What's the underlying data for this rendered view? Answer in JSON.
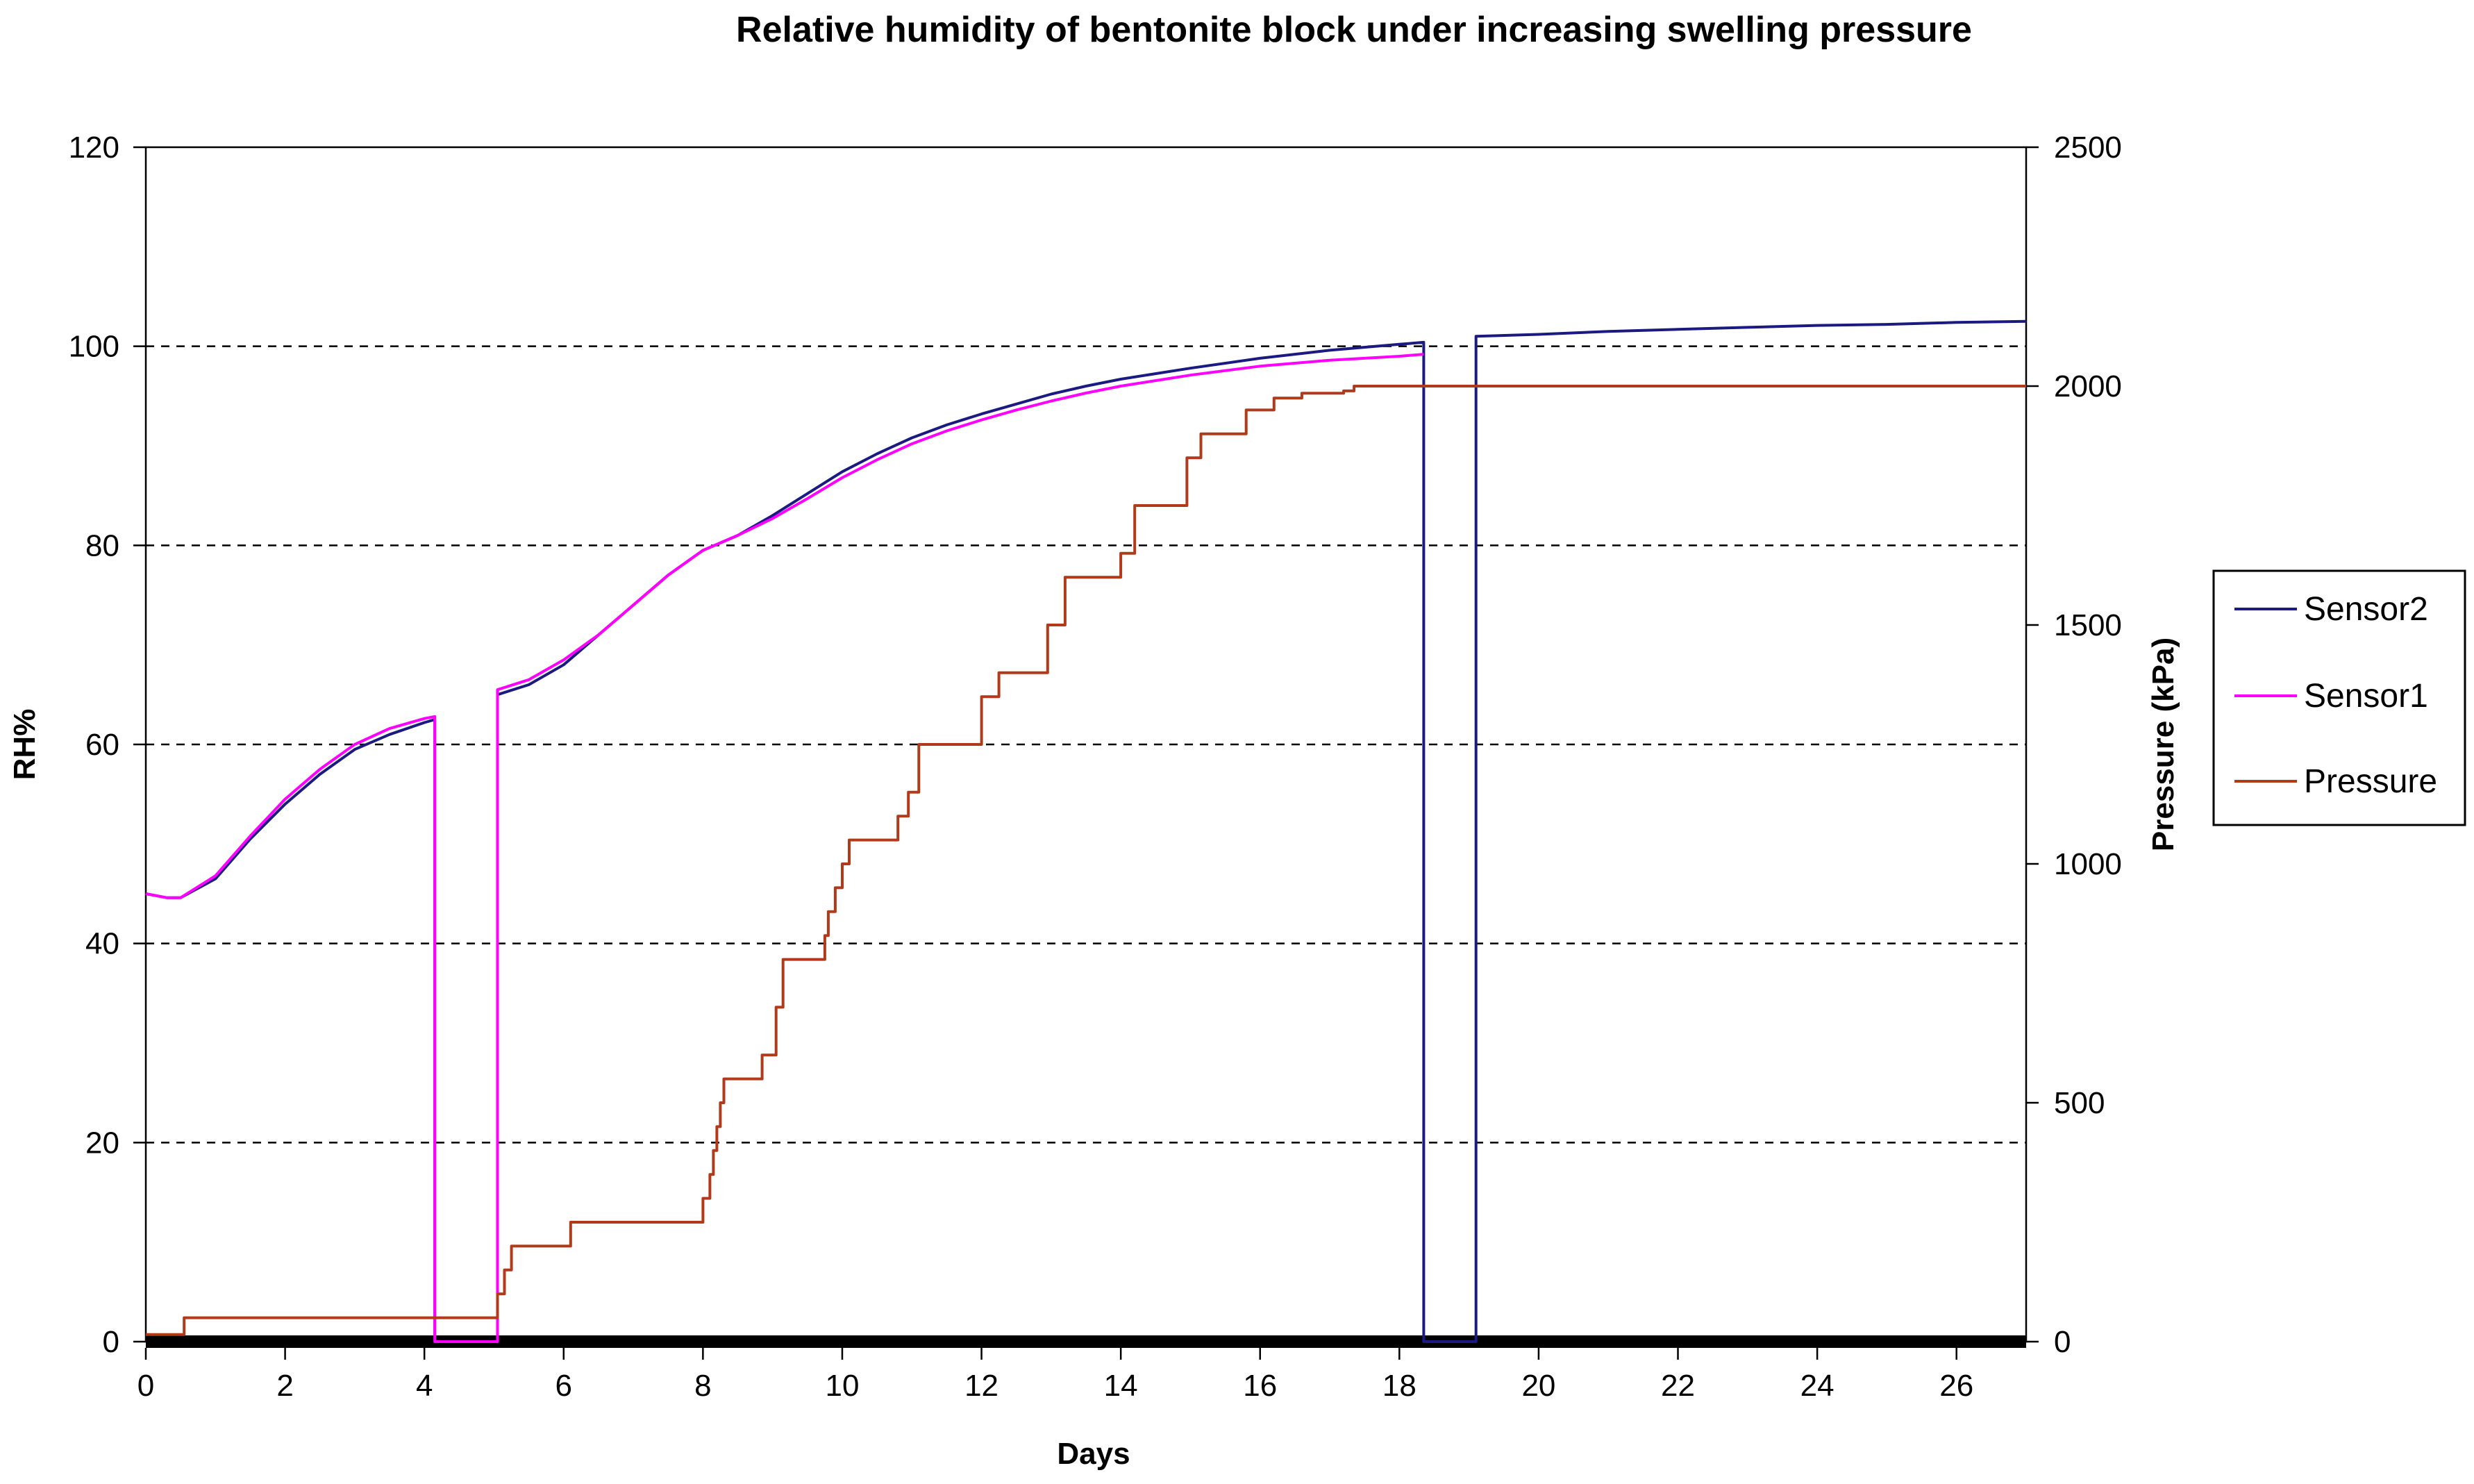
{
  "chart_data": {
    "type": "line",
    "title": "Relative humidity of bentonite block under increasing swelling pressure",
    "xlabel": "Days",
    "ylabel": "RH%",
    "y2label": "Pressure  (kPa)",
    "xlim": [
      0,
      27
    ],
    "ylim": [
      0,
      120
    ],
    "y2lim": [
      0,
      2500
    ],
    "x_ticks": [
      0,
      2,
      4,
      6,
      8,
      10,
      12,
      14,
      16,
      18,
      20,
      22,
      24,
      26
    ],
    "y_ticks": [
      0,
      20,
      40,
      60,
      80,
      100,
      120
    ],
    "y2_ticks": [
      0,
      500,
      1000,
      1500,
      2000,
      2500
    ],
    "y_gridlines": [
      20,
      40,
      60,
      80,
      100
    ],
    "grid_style": "dashed horizontal",
    "legend_position": "right",
    "legend": [
      "Sensor2",
      "Sensor1",
      "Pressure"
    ],
    "series": [
      {
        "name": "Sensor2",
        "axis": "left",
        "color": "#1a1a80",
        "x": [
          0,
          0.3,
          0.5,
          1,
          1.5,
          2,
          2.5,
          3,
          3.5,
          4,
          4.15,
          4.15,
          5.05,
          5.05,
          5.5,
          6,
          6.5,
          7,
          7.5,
          8,
          8.5,
          9,
          9.5,
          10,
          10.5,
          11,
          11.5,
          12,
          12.5,
          13,
          13.5,
          14,
          15,
          16,
          17,
          18,
          18.35,
          18.35,
          19.1,
          19.1,
          20,
          21,
          22,
          23,
          24,
          25,
          26,
          27
        ],
        "y": [
          45,
          44.6,
          44.6,
          46.5,
          50.5,
          54,
          57,
          59.5,
          61,
          62.2,
          62.5,
          0,
          0,
          65,
          66,
          68,
          71,
          74,
          77,
          79.5,
          81,
          83,
          85.2,
          87.4,
          89.2,
          90.8,
          92.1,
          93.2,
          94.2,
          95.2,
          96,
          96.7,
          97.8,
          98.8,
          99.6,
          100.2,
          100.4,
          0,
          0,
          101,
          101.2,
          101.5,
          101.7,
          101.9,
          102.1,
          102.2,
          102.4,
          102.5
        ]
      },
      {
        "name": "Sensor1",
        "axis": "left",
        "color": "#ff00ff",
        "x": [
          0,
          0.3,
          0.5,
          1,
          1.5,
          2,
          2.5,
          3,
          3.5,
          4,
          4.15,
          4.15,
          5.05,
          5.05,
          5.5,
          6,
          6.5,
          7,
          7.5,
          8,
          8.5,
          9,
          9.5,
          10,
          10.5,
          11,
          11.5,
          12,
          12.5,
          13,
          13.5,
          14,
          15,
          16,
          17,
          18,
          18.35
        ],
        "y": [
          45,
          44.6,
          44.6,
          46.8,
          50.8,
          54.5,
          57.5,
          60,
          61.6,
          62.6,
          62.8,
          0,
          0,
          65.5,
          66.5,
          68.5,
          71,
          74,
          77,
          79.5,
          81,
          82.7,
          84.7,
          86.8,
          88.6,
          90.2,
          91.5,
          92.6,
          93.6,
          94.5,
          95.3,
          96,
          97.1,
          98,
          98.6,
          99,
          99.2
        ]
      },
      {
        "name": "Pressure",
        "axis": "right",
        "color": "#b03a1a",
        "step": true,
        "x": [
          0,
          0.55,
          5.05,
          5.15,
          5.25,
          6.1,
          8.0,
          8.1,
          8.15,
          8.2,
          8.25,
          8.3,
          8.35,
          8.85,
          9.05,
          9.15,
          9.25,
          9.75,
          9.8,
          9.9,
          10.0,
          10.1,
          10.15,
          10.25,
          10.8,
          10.95,
          11.1,
          11.3,
          12.0,
          12.25,
          12.95,
          13.2,
          14.0,
          14.2,
          14.95,
          15.15,
          15.8,
          16.2,
          16.6,
          17.2,
          17.35,
          27
        ],
        "y": [
          15,
          50,
          100,
          150,
          200,
          250,
          300,
          350,
          400,
          450,
          500,
          550,
          550,
          600,
          700,
          800,
          800,
          850,
          900,
          950,
          1000,
          1050,
          1050,
          1050,
          1100,
          1150,
          1250,
          1250,
          1350,
          1400,
          1500,
          1600,
          1650,
          1750,
          1850,
          1900,
          1950,
          1975,
          1985,
          1990,
          2000,
          2000
        ]
      }
    ]
  }
}
